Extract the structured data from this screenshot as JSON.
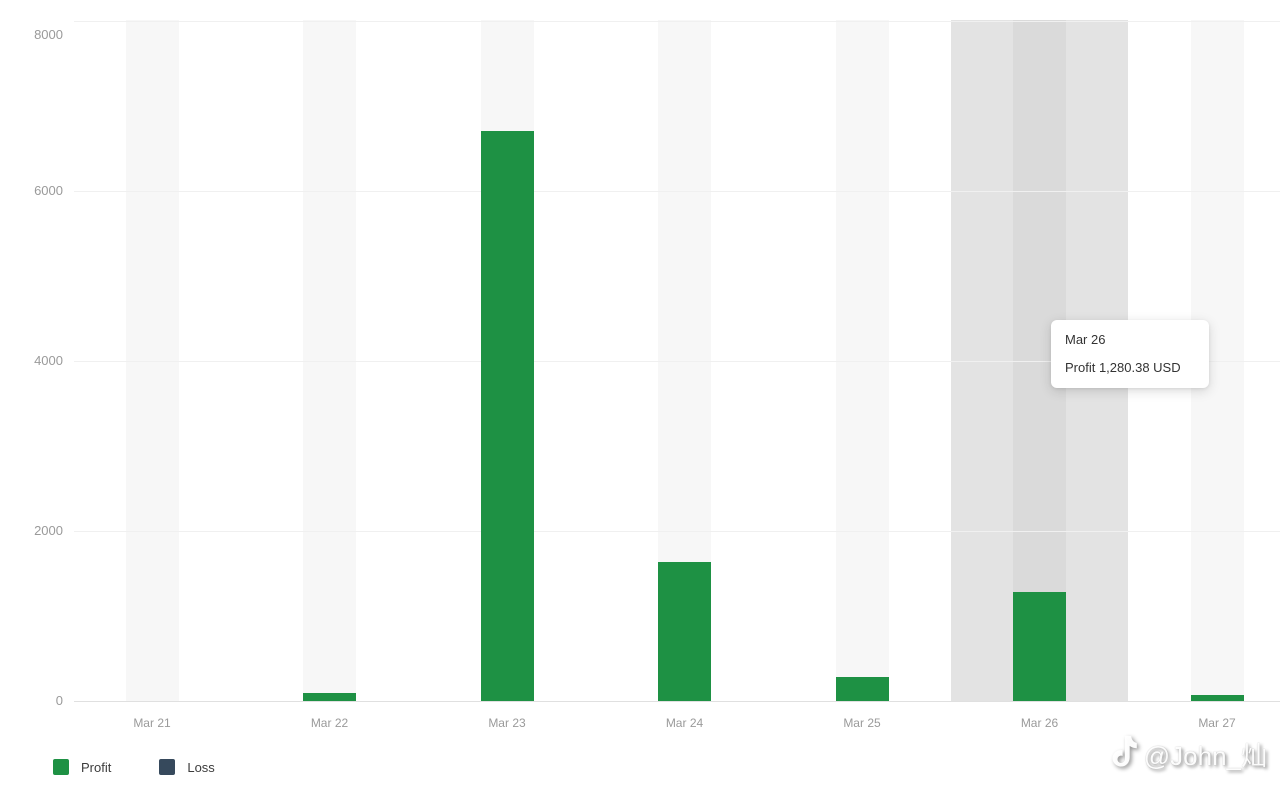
{
  "chart_data": {
    "type": "bar",
    "title": "",
    "categories": [
      "Mar 21",
      "Mar 22",
      "Mar 23",
      "Mar 24",
      "Mar 25",
      "Mar 26",
      "Mar 27"
    ],
    "series": [
      {
        "name": "Profit",
        "color": "#1e9144",
        "values": [
          0,
          90,
          6700,
          1640,
          280,
          1280.38,
          70
        ]
      },
      {
        "name": "Loss",
        "color": "#36495c",
        "values": [
          0,
          0,
          0,
          0,
          0,
          0,
          0
        ]
      }
    ],
    "yticks": [
      0,
      2000,
      4000,
      6000,
      8000
    ],
    "ytick_labels": [
      "0",
      "2000",
      "4000",
      "6000",
      "8000"
    ],
    "ylim": [
      0,
      8250
    ],
    "grid": true,
    "legend_position": "bottom-left",
    "value_unit": "USD",
    "hovered_index": 5,
    "hovered_category": "Mar 26"
  },
  "tooltip": {
    "title": "Mar 26",
    "line": "Profit 1,280.38 USD"
  },
  "legend": {
    "items": [
      {
        "label": "Profit",
        "color": "#1e9144"
      },
      {
        "label": "Loss",
        "color": "#36495c"
      }
    ]
  },
  "watermark": {
    "icon": "music-note-icon",
    "text": "@John_灿"
  },
  "colors": {
    "background": "#ffffff",
    "category_band": "#f7f7f7",
    "hover_highlight": "#e3e3e3",
    "hover_band_inner": "#dadada",
    "gridline": "#f0f0f0",
    "zero_line": "#e0e0e0",
    "axis_text": "#9a9a9a",
    "tooltip_text": "#333333"
  }
}
